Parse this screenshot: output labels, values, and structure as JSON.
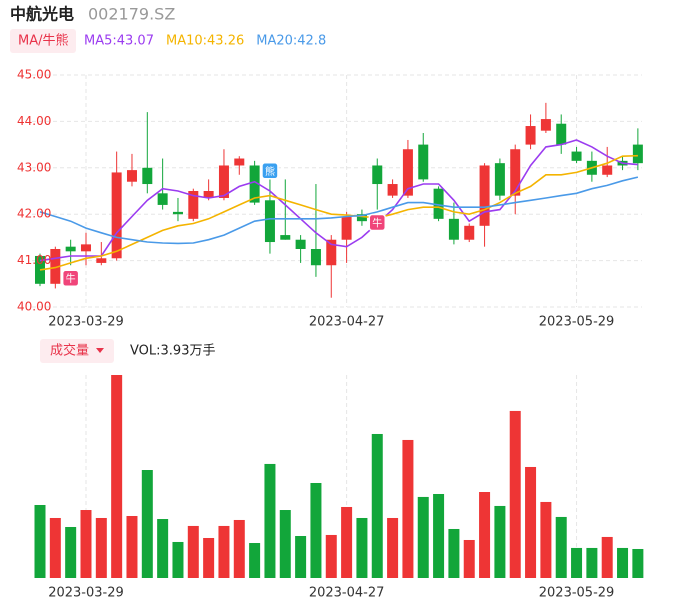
{
  "header": {
    "name": "中航光电",
    "code": "002179.SZ"
  },
  "legend": {
    "toggle": "MA/牛熊"
  },
  "volume_legend": {
    "toggle": "成交量",
    "text": "VOL:3.93万手"
  },
  "chart_data": [
    {
      "type": "candlestick",
      "categories": [
        null,
        null,
        null,
        "2023-03-29",
        null,
        null,
        null,
        null,
        null,
        null,
        null,
        null,
        null,
        null,
        null,
        null,
        null,
        null,
        null,
        null,
        "2023-04-27",
        null,
        null,
        null,
        null,
        null,
        null,
        null,
        null,
        null,
        null,
        null,
        null,
        null,
        null,
        "2023-05-29",
        null,
        null,
        null,
        null
      ],
      "open": [
        41.1,
        40.5,
        41.3,
        41.2,
        40.95,
        41.05,
        42.7,
        43.0,
        42.45,
        42.05,
        41.9,
        42.35,
        42.35,
        43.05,
        43.05,
        42.3,
        41.55,
        41.45,
        41.25,
        40.9,
        41.45,
        42.0,
        43.05,
        42.4,
        42.4,
        43.5,
        42.55,
        41.9,
        41.45,
        41.75,
        43.1,
        42.4,
        43.5,
        43.8,
        43.95,
        43.35,
        43.15,
        42.85,
        43.15,
        43.5
      ],
      "high": [
        41.15,
        41.3,
        41.45,
        41.6,
        41.4,
        43.35,
        43.3,
        44.2,
        43.2,
        42.35,
        42.55,
        42.75,
        43.4,
        43.25,
        43.15,
        43.0,
        42.75,
        41.55,
        42.65,
        41.55,
        42.05,
        42.1,
        43.2,
        42.75,
        43.6,
        43.75,
        42.6,
        42.25,
        41.8,
        43.1,
        43.2,
        43.5,
        44.15,
        44.4,
        44.15,
        43.45,
        43.35,
        43.45,
        43.25,
        43.85
      ],
      "low": [
        40.45,
        40.4,
        40.9,
        40.9,
        40.9,
        41.0,
        42.6,
        42.45,
        42.1,
        41.85,
        41.85,
        42.3,
        42.3,
        42.85,
        42.2,
        41.15,
        41.45,
        40.95,
        40.65,
        40.2,
        40.95,
        41.75,
        42.1,
        42.35,
        42.35,
        42.7,
        41.85,
        41.35,
        41.4,
        41.3,
        42.3,
        42.0,
        43.4,
        43.75,
        43.3,
        43.1,
        42.7,
        42.8,
        42.95,
        42.95
      ],
      "close": [
        40.5,
        41.25,
        41.2,
        41.35,
        41.05,
        42.9,
        42.95,
        42.65,
        42.2,
        42.0,
        42.5,
        42.5,
        43.05,
        43.2,
        42.25,
        41.4,
        41.45,
        41.25,
        40.9,
        41.45,
        41.95,
        41.85,
        42.65,
        42.65,
        43.4,
        42.75,
        41.9,
        41.45,
        41.75,
        43.05,
        42.4,
        43.4,
        43.9,
        44.05,
        43.5,
        43.15,
        42.85,
        43.05,
        43.05,
        43.1
      ],
      "up_color": "#ee3535",
      "down_color": "#12a63a",
      "series": [
        {
          "name": "MA5:43.07",
          "color": "#9b3cf0",
          "values": [
            41.0,
            41.05,
            41.1,
            41.1,
            41.1,
            41.6,
            41.95,
            42.3,
            42.55,
            42.5,
            42.4,
            42.35,
            42.4,
            42.6,
            42.7,
            42.5,
            42.2,
            41.9,
            41.6,
            41.35,
            41.3,
            41.5,
            41.8,
            42.1,
            42.55,
            42.65,
            42.65,
            42.3,
            41.85,
            42.05,
            42.1,
            42.5,
            43.05,
            43.45,
            43.5,
            43.6,
            43.45,
            43.25,
            43.1,
            43.07
          ]
        },
        {
          "name": "MA10:43.26",
          "color": "#f4b400",
          "values": [
            40.8,
            40.85,
            40.95,
            41.05,
            41.1,
            41.2,
            41.35,
            41.5,
            41.65,
            41.75,
            41.8,
            41.9,
            42.05,
            42.2,
            42.35,
            42.4,
            42.3,
            42.2,
            42.1,
            42.0,
            41.98,
            41.95,
            41.92,
            42.0,
            42.1,
            42.15,
            42.15,
            42.05,
            42.0,
            42.1,
            42.25,
            42.45,
            42.6,
            42.85,
            42.85,
            42.9,
            43.0,
            43.1,
            43.25,
            43.26
          ]
        },
        {
          "name": "MA20:42.8",
          "color": "#4a9ae8",
          "values": [
            42.05,
            41.95,
            41.85,
            41.7,
            41.6,
            41.5,
            41.45,
            41.4,
            41.38,
            41.37,
            41.38,
            41.45,
            41.55,
            41.7,
            41.85,
            41.9,
            41.9,
            41.9,
            41.9,
            41.92,
            41.95,
            41.97,
            42.05,
            42.15,
            42.25,
            42.25,
            42.2,
            42.15,
            42.15,
            42.15,
            42.2,
            42.25,
            42.3,
            42.35,
            42.4,
            42.45,
            42.55,
            42.62,
            42.72,
            42.8
          ]
        }
      ],
      "annotations": [
        {
          "index": 2,
          "text": "牛",
          "color": "#f0457a"
        },
        {
          "index": 15,
          "text": "熊",
          "color": "#3aa0f0"
        },
        {
          "index": 22,
          "text": "牛",
          "color": "#f0457a"
        }
      ],
      "ylim": [
        40,
        45
      ],
      "yticks": [
        {
          "value": 45,
          "label": "45.00"
        },
        {
          "value": 44,
          "label": "44.00"
        },
        {
          "value": 43,
          "label": "43.00"
        },
        {
          "value": 42,
          "label": "42.00"
        },
        {
          "value": 41,
          "label": "41.00"
        },
        {
          "value": 40,
          "label": "40.00"
        }
      ],
      "grid": true
    },
    {
      "type": "bar",
      "categories": [
        null,
        null,
        null,
        "2023-03-29",
        null,
        null,
        null,
        null,
        null,
        null,
        null,
        null,
        null,
        null,
        null,
        null,
        null,
        null,
        null,
        null,
        "2023-04-27",
        null,
        null,
        null,
        null,
        null,
        null,
        null,
        null,
        null,
        null,
        null,
        null,
        null,
        null,
        "2023-05-29",
        null,
        null,
        null,
        null
      ],
      "values": [
        9.89,
        8.13,
        6.91,
        9.21,
        8.13,
        27.5,
        8.4,
        14.63,
        7.99,
        4.88,
        7.05,
        5.42,
        7.05,
        7.86,
        4.74,
        15.45,
        9.21,
        5.69,
        12.87,
        5.83,
        9.62,
        8.13,
        19.51,
        8.13,
        18.7,
        10.98,
        11.38,
        6.64,
        5.15,
        11.65,
        9.76,
        22.63,
        15.04,
        10.3,
        8.27,
        4.07,
        4.07,
        5.56,
        4.07,
        3.93
      ],
      "ylim": [
        0,
        27.5
      ]
    }
  ]
}
